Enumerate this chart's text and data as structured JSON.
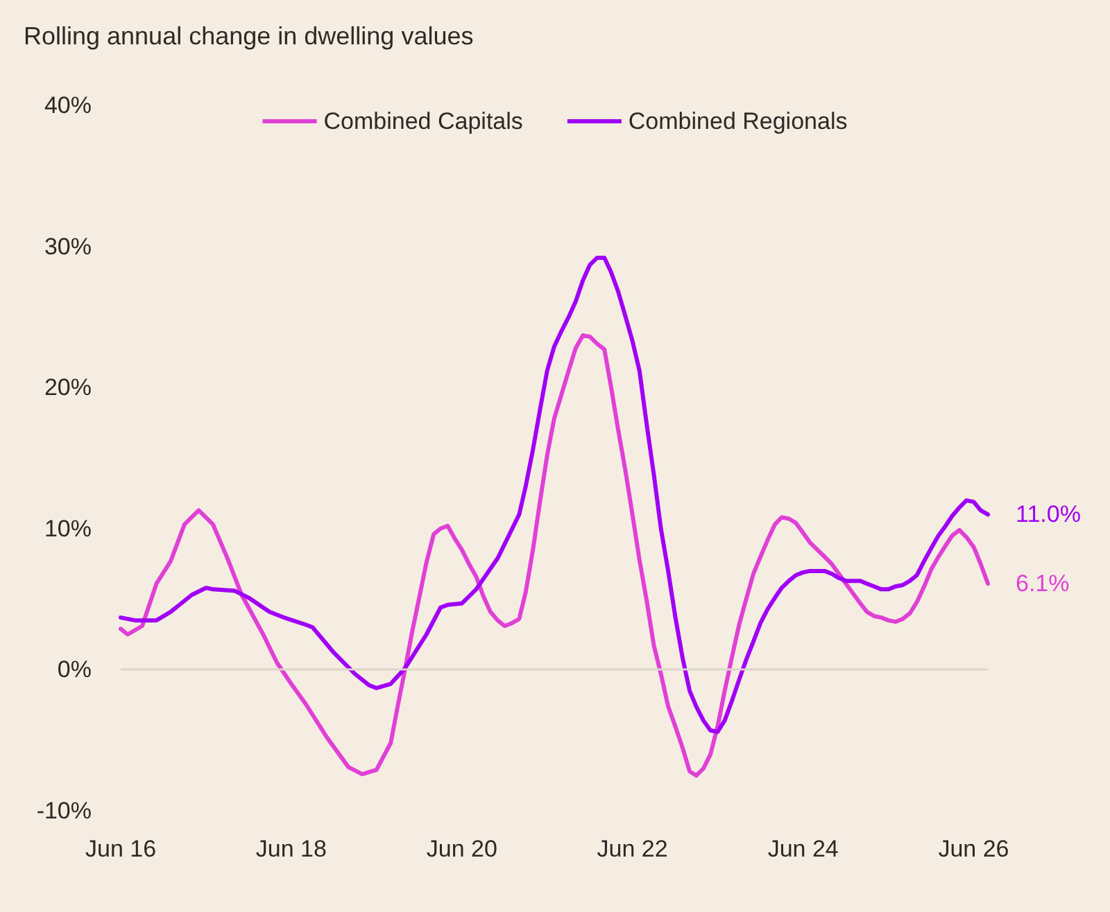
{
  "chart_data": {
    "type": "line",
    "title": "Rolling annual change in dwelling values",
    "legend": "top",
    "xlim": [
      "2016-06",
      "2026-08"
    ],
    "xticks": [
      {
        "value": "2016-06",
        "label": "Jun 16"
      },
      {
        "value": "2018-06",
        "label": "Jun 18"
      },
      {
        "value": "2020-06",
        "label": "Jun 20"
      },
      {
        "value": "2022-06",
        "label": "Jun 22"
      },
      {
        "value": "2024-06",
        "label": "Jun 24"
      },
      {
        "value": "2026-06",
        "label": "Jun 26"
      }
    ],
    "ylim": [
      -10,
      40
    ],
    "yticks": [
      {
        "value": -10,
        "label": "-10%"
      },
      {
        "value": 0,
        "label": "0%"
      },
      {
        "value": 10,
        "label": "10%"
      },
      {
        "value": 20,
        "label": "20%"
      },
      {
        "value": 30,
        "label": "30%"
      },
      {
        "value": 40,
        "label": "40%"
      }
    ],
    "ref_lines": [
      {
        "axis": "y",
        "value": 0,
        "color": "#ddd5ca"
      }
    ],
    "series": [
      {
        "name": "Combined Capitals",
        "color": "#e040d6",
        "x": [
          "2016-06",
          "2016-07",
          "2016-09",
          "2016-11",
          "2017-01",
          "2017-03",
          "2017-05",
          "2017-07",
          "2017-09",
          "2017-11",
          "2018-02",
          "2018-04",
          "2018-06",
          "2018-08",
          "2018-11",
          "2019-02",
          "2019-04",
          "2019-06",
          "2019-08",
          "2019-09",
          "2019-10",
          "2019-11",
          "2019-12",
          "2020-01",
          "2020-02",
          "2020-03",
          "2020-04",
          "2020-05",
          "2020-06",
          "2020-07",
          "2020-08",
          "2020-09",
          "2020-10",
          "2020-11",
          "2020-12",
          "2021-01",
          "2021-02",
          "2021-03",
          "2021-04",
          "2021-05",
          "2021-06",
          "2021-07",
          "2021-08",
          "2021-09",
          "2021-10",
          "2021-11",
          "2021-12",
          "2022-01",
          "2022-02",
          "2022-03",
          "2022-04",
          "2022-05",
          "2022-06",
          "2022-07",
          "2022-08",
          "2022-09",
          "2022-10",
          "2022-11",
          "2022-12",
          "2023-01",
          "2023-02",
          "2023-03",
          "2023-04",
          "2023-05",
          "2023-06",
          "2023-07",
          "2023-08",
          "2023-09",
          "2023-10",
          "2023-11",
          "2023-12",
          "2024-01",
          "2024-02",
          "2024-03",
          "2024-04",
          "2024-05",
          "2024-06",
          "2024-07",
          "2024-08",
          "2024-09",
          "2024-10",
          "2024-11",
          "2024-12",
          "2025-01",
          "2025-02",
          "2025-03",
          "2025-04",
          "2025-05",
          "2025-06",
          "2025-07",
          "2025-08",
          "2025-09",
          "2025-10",
          "2025-11",
          "2025-12",
          "2026-01",
          "2026-02",
          "2026-03",
          "2026-04",
          "2026-05",
          "2026-06",
          "2026-07",
          "2026-08"
        ],
        "values": [
          2.9,
          2.5,
          3.1,
          6.1,
          7.7,
          10.3,
          11.3,
          10.3,
          7.9,
          5.3,
          2.5,
          0.5,
          -1.0,
          -2.4,
          -4.8,
          -6.9,
          -7.4,
          -7.1,
          -5.2,
          -2.5,
          0.0,
          2.7,
          5.1,
          7.6,
          9.6,
          10.0,
          10.2,
          9.3,
          8.5,
          7.5,
          6.6,
          5.2,
          4.1,
          3.5,
          3.1,
          3.3,
          3.6,
          5.5,
          8.5,
          11.9,
          15.2,
          17.8,
          19.5,
          21.2,
          22.8,
          23.7,
          23.6,
          23.1,
          22.7,
          20.1,
          17.0,
          14.2,
          11.0,
          7.8,
          4.9,
          1.7,
          -0.3,
          -2.6,
          -4.0,
          -5.5,
          -7.2,
          -7.5,
          -7.0,
          -6.0,
          -4.0,
          -1.5,
          0.9,
          3.2,
          5.0,
          6.8,
          8.0,
          9.2,
          10.3,
          10.8,
          10.7,
          10.4,
          9.7,
          9.0,
          8.5,
          8.0,
          7.5,
          6.8,
          6.1,
          5.4,
          4.7,
          4.1,
          3.8,
          3.7,
          3.5,
          3.4,
          3.6,
          4.0,
          4.8,
          5.9,
          7.1,
          8.0,
          8.8,
          9.5,
          9.9,
          9.4,
          8.7,
          7.5,
          6.1
        ],
        "value_labels": [
          null,
          null,
          null,
          null,
          null,
          null,
          null,
          null,
          null,
          null,
          null,
          null,
          null,
          null,
          null,
          null,
          null,
          null,
          null,
          null,
          null,
          null,
          null,
          null,
          null,
          null,
          null,
          null,
          null,
          null,
          null,
          null,
          null,
          null,
          null,
          null,
          null,
          null,
          null,
          null,
          null,
          null,
          null,
          null,
          null,
          null,
          null,
          null,
          null,
          null,
          null,
          null,
          null,
          null,
          null,
          null,
          null,
          null,
          null,
          null,
          null,
          null,
          null,
          null,
          null,
          null,
          null,
          null,
          null,
          null,
          null,
          null,
          null,
          null,
          null,
          null,
          null,
          null,
          null,
          null,
          null,
          null,
          null,
          null,
          null,
          null,
          null,
          null,
          null,
          null,
          null,
          null,
          null,
          null,
          null,
          null,
          null,
          null,
          null,
          null,
          null,
          null,
          "6.1%"
        ]
      },
      {
        "name": "Combined Regionals",
        "color": "#a000f5",
        "x": [
          "2016-06",
          "2016-08",
          "2016-11",
          "2017-01",
          "2017-04",
          "2017-06",
          "2017-07",
          "2017-10",
          "2017-12",
          "2018-02",
          "2018-03",
          "2018-05",
          "2018-08",
          "2018-09",
          "2018-12",
          "2019-03",
          "2019-05",
          "2019-06",
          "2019-08",
          "2019-10",
          "2020-01",
          "2020-03",
          "2020-04",
          "2020-06",
          "2020-08",
          "2020-11",
          "2021-02",
          "2021-03",
          "2021-04",
          "2021-05",
          "2021-06",
          "2021-07",
          "2021-08",
          "2021-09",
          "2021-10",
          "2021-11",
          "2021-12",
          "2022-01",
          "2022-02",
          "2022-03",
          "2022-04",
          "2022-05",
          "2022-06",
          "2022-07",
          "2022-08",
          "2022-09",
          "2022-10",
          "2022-11",
          "2022-12",
          "2023-01",
          "2023-02",
          "2023-03",
          "2023-04",
          "2023-05",
          "2023-06",
          "2023-07",
          "2023-08",
          "2023-09",
          "2023-10",
          "2023-11",
          "2023-12",
          "2024-01",
          "2024-02",
          "2024-03",
          "2024-04",
          "2024-05",
          "2024-06",
          "2024-07",
          "2024-08",
          "2024-09",
          "2024-10",
          "2024-11",
          "2024-12",
          "2025-01",
          "2025-02",
          "2025-03",
          "2025-04",
          "2025-05",
          "2025-06",
          "2025-07",
          "2025-08",
          "2025-09",
          "2025-10",
          "2025-11",
          "2025-12",
          "2026-01",
          "2026-02",
          "2026-03",
          "2026-04",
          "2026-05",
          "2026-06",
          "2026-07",
          "2026-08"
        ],
        "values": [
          3.7,
          3.5,
          3.5,
          4.1,
          5.3,
          5.8,
          5.7,
          5.6,
          5.1,
          4.4,
          4.1,
          3.7,
          3.2,
          3.0,
          1.2,
          -0.3,
          -1.1,
          -1.3,
          -1.0,
          0.1,
          2.5,
          4.4,
          4.6,
          4.7,
          5.7,
          7.9,
          11.0,
          13.0,
          15.6,
          18.4,
          21.2,
          22.9,
          24.0,
          25.0,
          26.1,
          27.6,
          28.7,
          29.2,
          29.2,
          28.2,
          26.8,
          25.1,
          23.3,
          21.2,
          17.4,
          13.8,
          10.0,
          7.0,
          3.8,
          0.9,
          -1.5,
          -2.6,
          -3.6,
          -4.3,
          -4.4,
          -3.6,
          -2.2,
          -0.7,
          0.7,
          2.0,
          3.3,
          4.3,
          5.1,
          5.8,
          6.3,
          6.7,
          6.9,
          7.0,
          7.0,
          7.0,
          6.8,
          6.5,
          6.3,
          6.3,
          6.3,
          6.1,
          5.9,
          5.7,
          5.7,
          5.9,
          6.0,
          6.3,
          6.7,
          7.7,
          8.6,
          9.5,
          10.2,
          10.9,
          11.5,
          12.0,
          11.9,
          11.3,
          11.0
        ],
        "value_labels": [
          null,
          null,
          null,
          null,
          null,
          null,
          null,
          null,
          null,
          null,
          null,
          null,
          null,
          null,
          null,
          null,
          null,
          null,
          null,
          null,
          null,
          null,
          null,
          null,
          null,
          null,
          null,
          null,
          null,
          null,
          null,
          null,
          null,
          null,
          null,
          null,
          null,
          null,
          null,
          null,
          null,
          null,
          null,
          null,
          null,
          null,
          null,
          null,
          null,
          null,
          null,
          null,
          null,
          null,
          null,
          null,
          null,
          null,
          null,
          null,
          null,
          null,
          null,
          null,
          null,
          null,
          null,
          null,
          null,
          null,
          null,
          null,
          null,
          null,
          null,
          null,
          null,
          null,
          null,
          null,
          null,
          null,
          null,
          null,
          null,
          null,
          null,
          null,
          null,
          null,
          null,
          null,
          "11.0%"
        ]
      }
    ]
  }
}
